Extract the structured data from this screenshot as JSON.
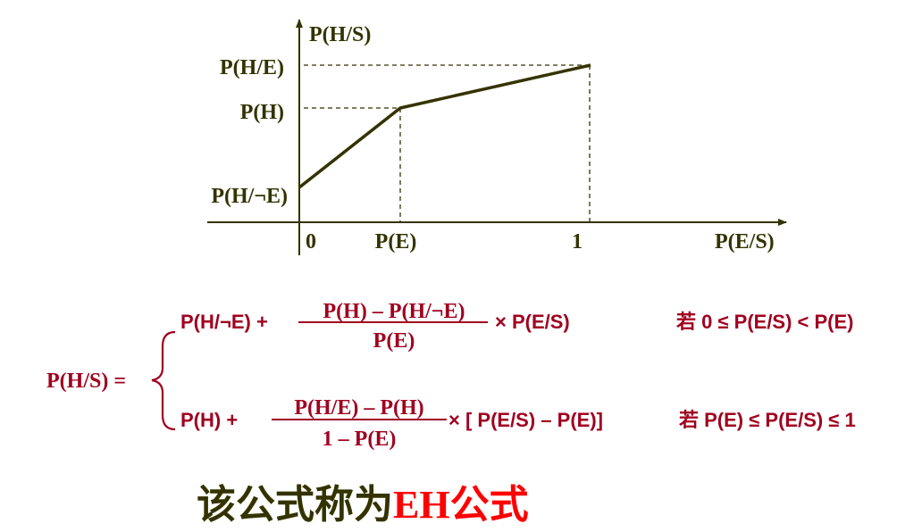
{
  "graph": {
    "y_axis_label": "P(H/S)",
    "x_axis_label": "P(E/S)",
    "y_ticks": [
      "P(H/E)",
      "P(H)",
      "P(H/¬E)"
    ],
    "x_ticks": [
      "0",
      "P(E)",
      "1"
    ]
  },
  "formula": {
    "lhs": "P(H/S) =",
    "case1": {
      "lead": "P(H/¬E) +",
      "numerator": "P(H) – P(H/¬E)",
      "denominator": "P(E)",
      "tail": "× P(E/S)",
      "condition": "若 0 ≤ P(E/S) < P(E)"
    },
    "case2": {
      "lead": "P(H) +",
      "numerator": "P(H/E) – P(H)",
      "denominator": "1 – P(E)",
      "tail": "× [ P(E/S) – P(E)]",
      "condition": "若 P(E) ≤ P(E/S) ≤ 1"
    }
  },
  "caption": {
    "prefix": "该公式称为",
    "highlight": "EH公式"
  },
  "colors": {
    "olive": "#333300",
    "formula_red": "#a0001f",
    "highlight_red": "#ff0000"
  }
}
